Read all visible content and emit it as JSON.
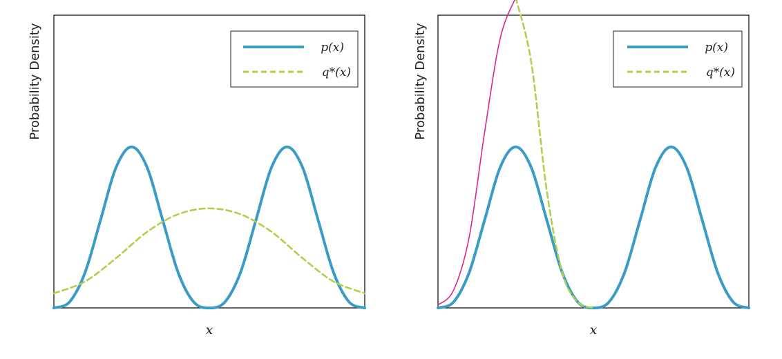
{
  "chart_data": [
    {
      "type": "line",
      "title": "",
      "xlabel": "x",
      "ylabel": "Probability Density",
      "xlim": [
        -2,
        2
      ],
      "ylim": [
        0,
        1
      ],
      "grid": false,
      "legend": "top-right",
      "colors": {
        "p": "#3a9cc6",
        "q": "#aed04c",
        "q_left": "#d62a8c"
      },
      "series": [
        {
          "name": "p(x)",
          "style": "solid",
          "x": [
            -2.0,
            -1.8,
            -1.6,
            -1.4,
            -1.2,
            -1.0,
            -0.8,
            -0.6,
            -0.4,
            -0.2,
            0.0,
            0.2,
            0.4,
            0.6,
            0.8,
            1.0,
            1.2,
            1.4,
            1.6,
            1.8,
            2.0
          ],
          "y": [
            0.0,
            0.02,
            0.12,
            0.3,
            0.48,
            0.55,
            0.48,
            0.3,
            0.12,
            0.02,
            0.0,
            0.02,
            0.12,
            0.3,
            0.48,
            0.55,
            0.48,
            0.3,
            0.12,
            0.02,
            0.0
          ]
        },
        {
          "name": "q*(x)",
          "style": "dashed",
          "x": [
            -2.0,
            -1.6,
            -1.2,
            -0.8,
            -0.4,
            0.0,
            0.4,
            0.8,
            1.2,
            1.6,
            2.0
          ],
          "y": [
            0.05,
            0.09,
            0.17,
            0.26,
            0.32,
            0.34,
            0.32,
            0.26,
            0.17,
            0.09,
            0.05
          ]
        }
      ]
    },
    {
      "type": "line",
      "title": "",
      "xlabel": "x",
      "ylabel": "Probability Density",
      "xlim": [
        -2,
        2
      ],
      "ylim": [
        0,
        1
      ],
      "grid": false,
      "legend": "top-right",
      "colors": {
        "p": "#3a9cc6",
        "q": "#aed04c",
        "q_left": "#d62a8c"
      },
      "series": [
        {
          "name": "p(x)",
          "style": "solid",
          "x": [
            -2.0,
            -1.8,
            -1.6,
            -1.4,
            -1.2,
            -1.0,
            -0.8,
            -0.6,
            -0.4,
            -0.2,
            0.0,
            0.2,
            0.4,
            0.6,
            0.8,
            1.0,
            1.2,
            1.4,
            1.6,
            1.8,
            2.0
          ],
          "y": [
            0.0,
            0.02,
            0.12,
            0.3,
            0.48,
            0.55,
            0.48,
            0.3,
            0.12,
            0.02,
            0.0,
            0.02,
            0.12,
            0.3,
            0.48,
            0.55,
            0.48,
            0.3,
            0.12,
            0.02,
            0.0
          ]
        },
        {
          "name": "q*(x)",
          "style": "split",
          "x": [
            -2.0,
            -1.8,
            -1.6,
            -1.4,
            -1.2,
            -1.0,
            -0.8,
            -0.6,
            -0.4,
            -0.2,
            0.0
          ],
          "y": [
            0.01,
            0.06,
            0.24,
            0.6,
            0.92,
            1.06,
            0.84,
            0.4,
            0.12,
            0.02,
            0.0
          ]
        }
      ]
    }
  ]
}
